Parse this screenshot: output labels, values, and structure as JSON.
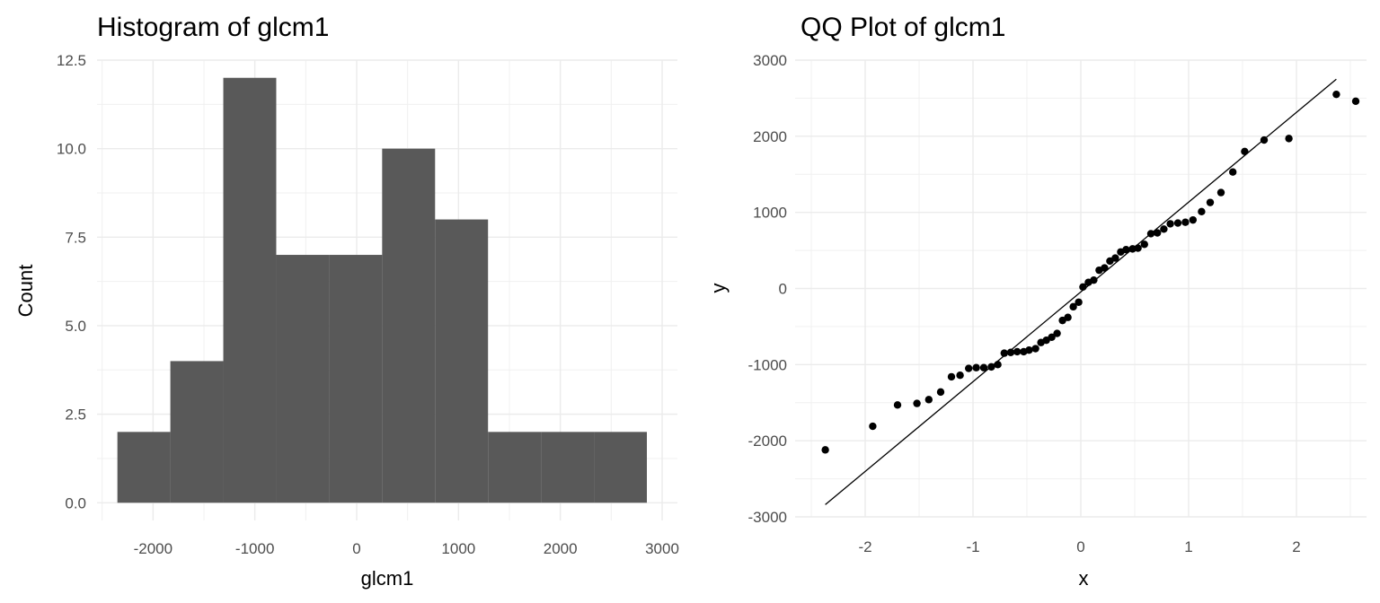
{
  "chart_data": [
    {
      "type": "bar",
      "title": "Histogram of glcm1",
      "xlabel": "glcm1",
      "ylabel": "Count",
      "xlim": [
        -2550,
        3150
      ],
      "ylim": [
        -0.5,
        12.5
      ],
      "x_ticks": [
        -2000,
        -1000,
        0,
        1000,
        2000,
        3000
      ],
      "x_tick_labels": [
        "-2000",
        "-1000",
        "0",
        "1000",
        "2000",
        "3000"
      ],
      "y_ticks": [
        0,
        2.5,
        5,
        7.5,
        10,
        12.5
      ],
      "y_tick_labels": [
        "0.0",
        "2.5",
        "5.0",
        "7.5",
        "10.0",
        "12.5"
      ],
      "bins": [
        {
          "x0": -2350,
          "x1": -1830,
          "count": 2
        },
        {
          "x0": -1830,
          "x1": -1310,
          "count": 4
        },
        {
          "x0": -1310,
          "x1": -790,
          "count": 12
        },
        {
          "x0": -790,
          "x1": -270,
          "count": 7
        },
        {
          "x0": -270,
          "x1": 250,
          "count": 7
        },
        {
          "x0": 250,
          "x1": 770,
          "count": 10
        },
        {
          "x0": 770,
          "x1": 1290,
          "count": 8
        },
        {
          "x0": 1290,
          "x1": 1810,
          "count": 2
        },
        {
          "x0": 1810,
          "x1": 2330,
          "count": 2
        },
        {
          "x0": 2330,
          "x1": 2850,
          "count": 2
        }
      ],
      "bar_color": "#595959",
      "grid": true
    },
    {
      "type": "scatter",
      "title": "QQ Plot of glcm1",
      "xlabel": "x",
      "ylabel": "y",
      "xlim": [
        -2.65,
        2.65
      ],
      "ylim": [
        -3000,
        3000
      ],
      "x_ticks": [
        -2,
        -1,
        0,
        1,
        2
      ],
      "x_tick_labels": [
        "-2",
        "-1",
        "0",
        "1",
        "2"
      ],
      "y_ticks": [
        -3000,
        -2000,
        -1000,
        0,
        1000,
        2000,
        3000
      ],
      "y_tick_labels": [
        "-3000",
        "-2000",
        "-1000",
        "0",
        "1000",
        "2000",
        "3000"
      ],
      "points": [
        [
          -2.37,
          -2120
        ],
        [
          -1.93,
          -1810
        ],
        [
          -1.7,
          -1530
        ],
        [
          -1.52,
          -1510
        ],
        [
          -1.41,
          -1460
        ],
        [
          -1.3,
          -1360
        ],
        [
          -1.2,
          -1160
        ],
        [
          -1.12,
          -1140
        ],
        [
          -1.04,
          -1050
        ],
        [
          -0.97,
          -1040
        ],
        [
          -0.9,
          -1040
        ],
        [
          -0.83,
          -1030
        ],
        [
          -0.77,
          -1000
        ],
        [
          -0.71,
          -850
        ],
        [
          -0.65,
          -840
        ],
        [
          -0.59,
          -830
        ],
        [
          -0.53,
          -830
        ],
        [
          -0.48,
          -810
        ],
        [
          -0.42,
          -790
        ],
        [
          -0.37,
          -710
        ],
        [
          -0.32,
          -680
        ],
        [
          -0.27,
          -640
        ],
        [
          -0.22,
          -590
        ],
        [
          -0.17,
          -420
        ],
        [
          -0.12,
          -380
        ],
        [
          -0.07,
          -240
        ],
        [
          -0.02,
          -180
        ],
        [
          0.02,
          20
        ],
        [
          0.07,
          80
        ],
        [
          0.12,
          110
        ],
        [
          0.17,
          240
        ],
        [
          0.22,
          270
        ],
        [
          0.27,
          360
        ],
        [
          0.32,
          400
        ],
        [
          0.37,
          480
        ],
        [
          0.42,
          510
        ],
        [
          0.48,
          520
        ],
        [
          0.53,
          530
        ],
        [
          0.59,
          580
        ],
        [
          0.65,
          720
        ],
        [
          0.71,
          730
        ],
        [
          0.77,
          780
        ],
        [
          0.83,
          850
        ],
        [
          0.9,
          860
        ],
        [
          0.97,
          870
        ],
        [
          1.04,
          900
        ],
        [
          1.12,
          1010
        ],
        [
          1.2,
          1130
        ],
        [
          1.3,
          1260
        ],
        [
          1.41,
          1530
        ],
        [
          1.52,
          1800
        ],
        [
          1.7,
          1950
        ],
        [
          1.93,
          1970
        ],
        [
          2.37,
          2550
        ],
        [
          2.55,
          2460
        ]
      ],
      "reference_line": {
        "x0": -2.37,
        "y0": -2840,
        "x1": 2.37,
        "y1": 2750
      },
      "point_color": "#000000",
      "grid": true
    }
  ]
}
